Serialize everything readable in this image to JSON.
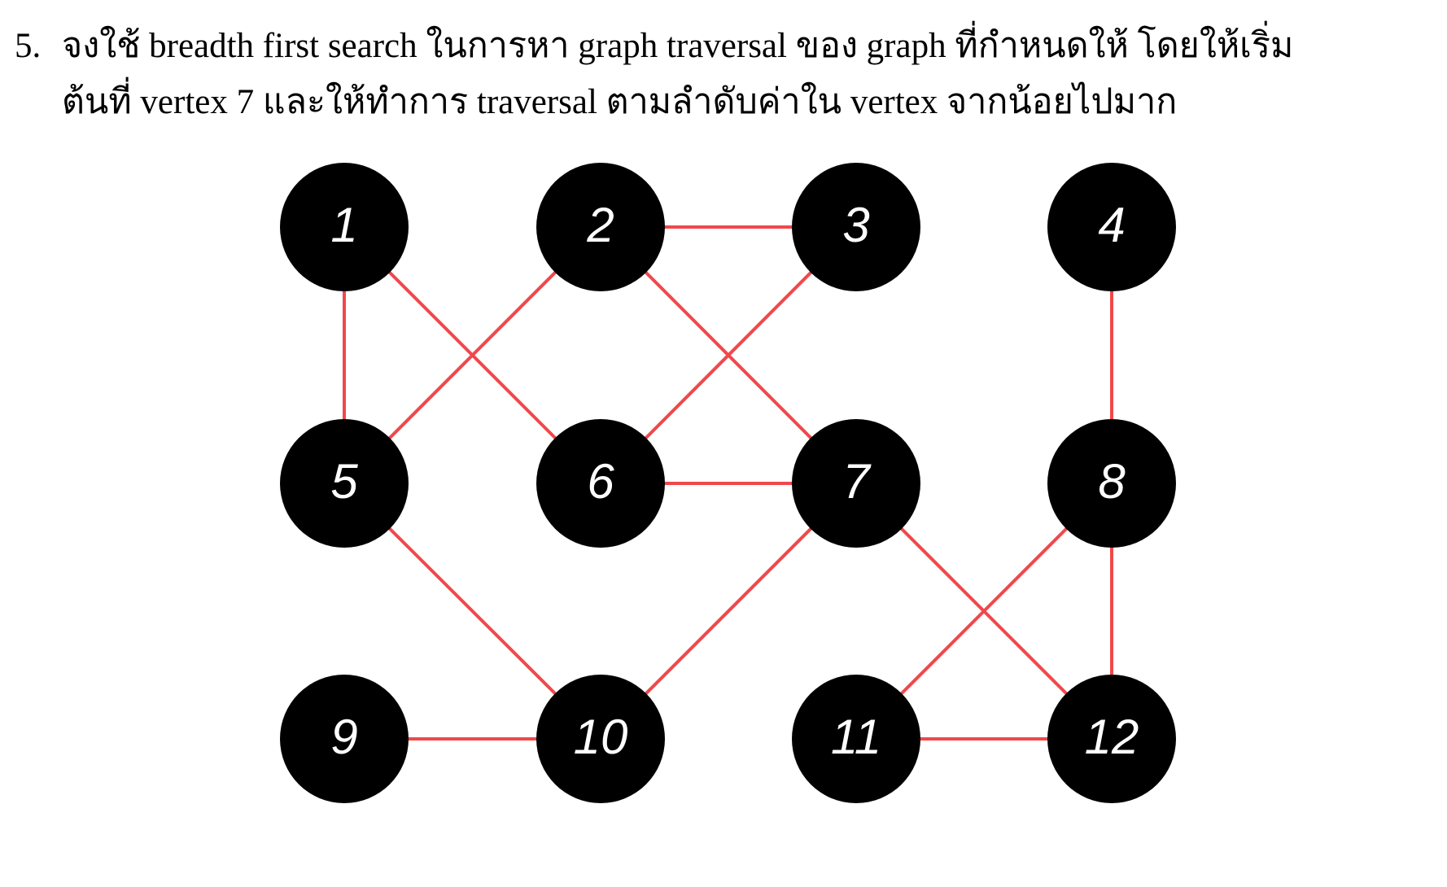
{
  "question": {
    "number": "5.",
    "line1": "จงใช้ breadth first search ในการหา graph traversal ของ graph ที่กำหนดให้ โดยให้เริ่ม",
    "line2": "ต้นที่ vertex 7 และให้ทำการ traversal ตามลำดับค่าใน vertex จากน้อยไปมาก"
  },
  "graph": {
    "colors": {
      "node_fill": "#000000",
      "label": "#ffffff",
      "edge": "#f0484c"
    },
    "nodes": [
      {
        "id": 1,
        "label": "1",
        "row": 0,
        "col": 0
      },
      {
        "id": 2,
        "label": "2",
        "row": 0,
        "col": 1
      },
      {
        "id": 3,
        "label": "3",
        "row": 0,
        "col": 2
      },
      {
        "id": 4,
        "label": "4",
        "row": 0,
        "col": 3
      },
      {
        "id": 5,
        "label": "5",
        "row": 1,
        "col": 0
      },
      {
        "id": 6,
        "label": "6",
        "row": 1,
        "col": 1
      },
      {
        "id": 7,
        "label": "7",
        "row": 1,
        "col": 2
      },
      {
        "id": 8,
        "label": "8",
        "row": 1,
        "col": 3
      },
      {
        "id": 9,
        "label": "9",
        "row": 2,
        "col": 0
      },
      {
        "id": 10,
        "label": "10",
        "row": 2,
        "col": 1
      },
      {
        "id": 11,
        "label": "11",
        "row": 2,
        "col": 2
      },
      {
        "id": 12,
        "label": "12",
        "row": 2,
        "col": 3
      }
    ],
    "edges": [
      [
        1,
        5
      ],
      [
        1,
        6
      ],
      [
        2,
        3
      ],
      [
        2,
        5
      ],
      [
        2,
        7
      ],
      [
        3,
        6
      ],
      [
        4,
        8
      ],
      [
        5,
        10
      ],
      [
        6,
        7
      ],
      [
        7,
        10
      ],
      [
        7,
        12
      ],
      [
        8,
        11
      ],
      [
        8,
        12
      ],
      [
        9,
        10
      ],
      [
        11,
        12
      ]
    ]
  }
}
